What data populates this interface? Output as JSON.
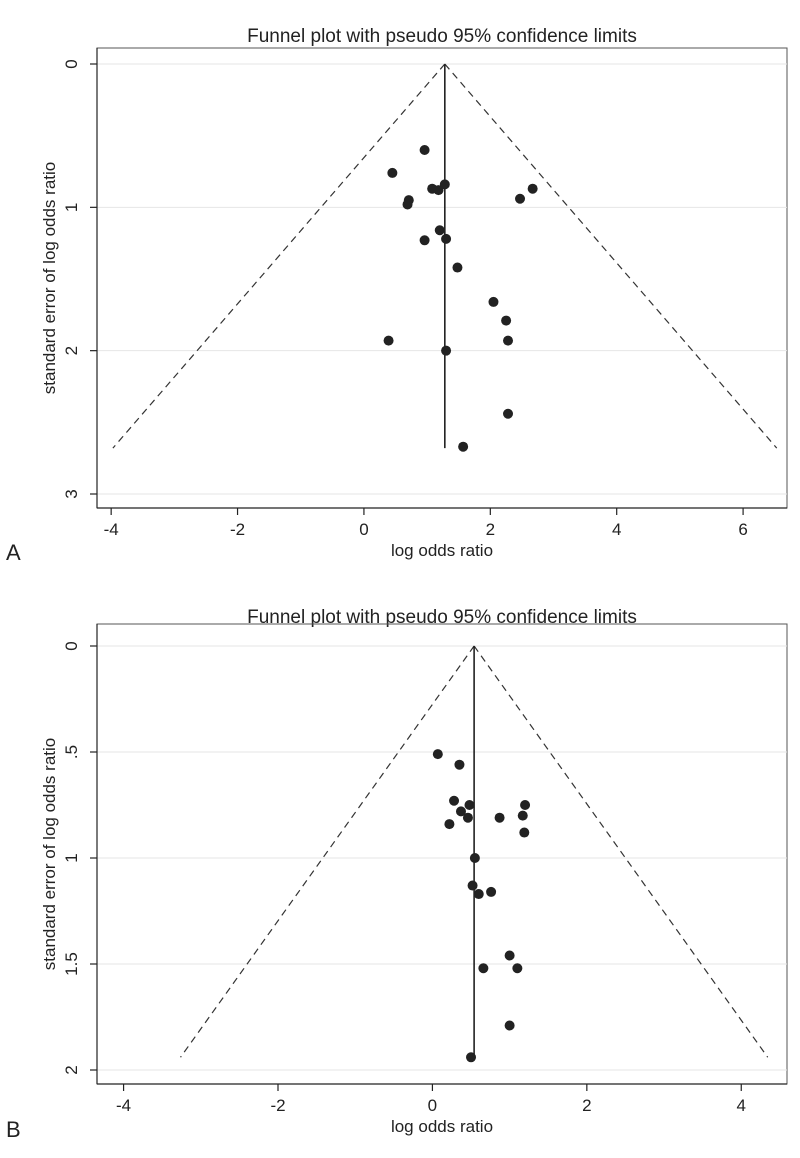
{
  "chart_data": [
    {
      "type": "scatter",
      "panel_label": "A",
      "title": "Funnel plot with pseudo 95% confidence limits",
      "xlabel": "log odds ratio",
      "ylabel": "standard error of log odds ratio",
      "xlim": [
        -4.05,
        6.6
      ],
      "ylim": [
        0,
        3
      ],
      "y_reversed": true,
      "xticks": [
        -4,
        -2,
        0,
        2,
        4,
        6
      ],
      "xtick_labels": [
        "-4",
        "-2",
        "0",
        "2",
        "4",
        "6"
      ],
      "yticks": [
        0,
        1,
        2,
        3
      ],
      "ytick_labels": [
        "0",
        "1",
        "2",
        "3"
      ],
      "grid": true,
      "pooled_estimate": 1.28,
      "funnel_max_se": 2.68,
      "points": [
        {
          "x": 0.96,
          "y": 0.6
        },
        {
          "x": 0.45,
          "y": 0.76
        },
        {
          "x": 1.08,
          "y": 0.87
        },
        {
          "x": 1.18,
          "y": 0.88
        },
        {
          "x": 1.28,
          "y": 0.84
        },
        {
          "x": 0.71,
          "y": 0.95
        },
        {
          "x": 0.69,
          "y": 0.98
        },
        {
          "x": 2.67,
          "y": 0.87
        },
        {
          "x": 2.47,
          "y": 0.94
        },
        {
          "x": 1.2,
          "y": 1.16
        },
        {
          "x": 0.96,
          "y": 1.23
        },
        {
          "x": 1.3,
          "y": 1.22
        },
        {
          "x": 1.48,
          "y": 1.42
        },
        {
          "x": 2.05,
          "y": 1.66
        },
        {
          "x": 2.25,
          "y": 1.79
        },
        {
          "x": 0.39,
          "y": 1.93
        },
        {
          "x": 2.28,
          "y": 1.93
        },
        {
          "x": 1.3,
          "y": 2.0
        },
        {
          "x": 2.28,
          "y": 2.44
        },
        {
          "x": 1.57,
          "y": 2.67
        }
      ]
    },
    {
      "type": "scatter",
      "panel_label": "B",
      "title": "Funnel plot with pseudo 95% confidence limits",
      "xlabel": "log odds ratio",
      "ylabel": "standard error of log odds ratio",
      "xlim": [
        -4.15,
        4.45
      ],
      "ylim": [
        0,
        2
      ],
      "y_reversed": true,
      "xticks": [
        -4,
        -2,
        0,
        2,
        4
      ],
      "xtick_labels": [
        "-4",
        "-2",
        "0",
        "2",
        "4"
      ],
      "yticks": [
        0,
        0.5,
        1,
        1.5,
        2
      ],
      "ytick_labels": [
        "0",
        ".5",
        "1",
        "1.5",
        "2"
      ],
      "grid": true,
      "pooled_estimate": 0.54,
      "funnel_max_se": 1.94,
      "points": [
        {
          "x": 0.07,
          "y": 0.51
        },
        {
          "x": 0.35,
          "y": 0.56
        },
        {
          "x": 0.28,
          "y": 0.73
        },
        {
          "x": 0.37,
          "y": 0.78
        },
        {
          "x": 0.48,
          "y": 0.75
        },
        {
          "x": 0.46,
          "y": 0.81
        },
        {
          "x": 0.22,
          "y": 0.84
        },
        {
          "x": 0.87,
          "y": 0.81
        },
        {
          "x": 1.2,
          "y": 0.75
        },
        {
          "x": 1.17,
          "y": 0.8
        },
        {
          "x": 1.19,
          "y": 0.88
        },
        {
          "x": 0.55,
          "y": 1.0
        },
        {
          "x": 0.52,
          "y": 1.13
        },
        {
          "x": 0.6,
          "y": 1.17
        },
        {
          "x": 0.76,
          "y": 1.16
        },
        {
          "x": 1.0,
          "y": 1.46
        },
        {
          "x": 0.66,
          "y": 1.52
        },
        {
          "x": 1.1,
          "y": 1.52
        },
        {
          "x": 1.0,
          "y": 1.79
        },
        {
          "x": 0.5,
          "y": 1.94
        }
      ]
    }
  ]
}
